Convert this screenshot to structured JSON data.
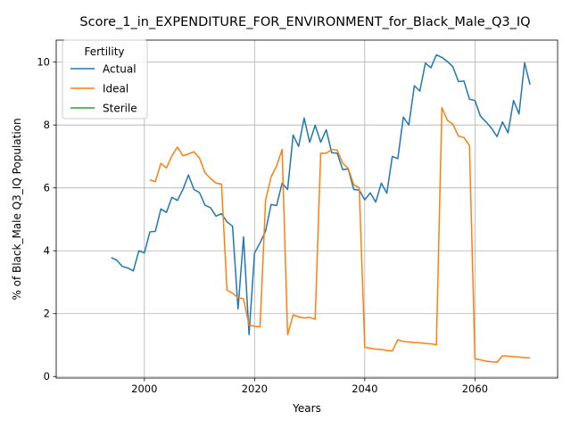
{
  "chart_data": {
    "type": "line",
    "title": "Score_1_in_EXPENDITURE_FOR_ENVIRONMENT_for_Black_Male_Q3_IQ",
    "xlabel": "Years",
    "ylabel": "% of Black_Male Q3_IQ Population",
    "xlim": [
      1984,
      2075
    ],
    "ylim": [
      -0.05,
      10.7
    ],
    "xticks": [
      2000,
      2020,
      2040,
      2060
    ],
    "yticks": [
      0,
      2,
      4,
      6,
      8,
      10
    ],
    "grid": true,
    "legend": {
      "title": "Fertility",
      "placement": "top-left"
    },
    "series": [
      {
        "name": "Actual",
        "color": "#1f77b4",
        "points": [
          [
            1994,
            3.78
          ],
          [
            1995,
            3.7
          ],
          [
            1996,
            3.5
          ],
          [
            1997,
            3.45
          ],
          [
            1998,
            3.36
          ],
          [
            1999,
            4.0
          ],
          [
            2000,
            3.93
          ],
          [
            2001,
            4.6
          ],
          [
            2002,
            4.62
          ],
          [
            2003,
            5.33
          ],
          [
            2004,
            5.22
          ],
          [
            2005,
            5.7
          ],
          [
            2006,
            5.6
          ],
          [
            2007,
            5.95
          ],
          [
            2008,
            6.41
          ],
          [
            2009,
            5.95
          ],
          [
            2010,
            5.85
          ],
          [
            2011,
            5.45
          ],
          [
            2012,
            5.37
          ],
          [
            2013,
            5.1
          ],
          [
            2014,
            5.18
          ],
          [
            2015,
            4.92
          ],
          [
            2016,
            4.78
          ],
          [
            2017,
            2.15
          ],
          [
            2018,
            4.44
          ],
          [
            2019,
            1.33
          ],
          [
            2020,
            3.93
          ],
          [
            2021,
            4.25
          ],
          [
            2022,
            4.63
          ],
          [
            2023,
            5.47
          ],
          [
            2024,
            5.44
          ],
          [
            2025,
            6.15
          ],
          [
            2026,
            5.95
          ],
          [
            2027,
            7.68
          ],
          [
            2028,
            7.32
          ],
          [
            2029,
            8.22
          ],
          [
            2030,
            7.45
          ],
          [
            2031,
            7.99
          ],
          [
            2032,
            7.45
          ],
          [
            2033,
            7.85
          ],
          [
            2034,
            7.12
          ],
          [
            2035,
            7.1
          ],
          [
            2036,
            6.58
          ],
          [
            2037,
            6.6
          ],
          [
            2038,
            5.95
          ],
          [
            2039,
            5.93
          ],
          [
            2040,
            5.62
          ],
          [
            2041,
            5.84
          ],
          [
            2042,
            5.55
          ],
          [
            2043,
            6.15
          ],
          [
            2044,
            5.83
          ],
          [
            2045,
            7.0
          ],
          [
            2046,
            6.93
          ],
          [
            2047,
            8.25
          ],
          [
            2048,
            8.0
          ],
          [
            2049,
            9.25
          ],
          [
            2050,
            9.08
          ],
          [
            2051,
            9.97
          ],
          [
            2052,
            9.82
          ],
          [
            2053,
            10.23
          ],
          [
            2054,
            10.15
          ],
          [
            2055,
            10.02
          ],
          [
            2056,
            9.85
          ],
          [
            2057,
            9.38
          ],
          [
            2058,
            9.4
          ],
          [
            2059,
            8.82
          ],
          [
            2060,
            8.78
          ],
          [
            2061,
            8.28
          ],
          [
            2062,
            8.1
          ],
          [
            2063,
            7.9
          ],
          [
            2064,
            7.63
          ],
          [
            2065,
            8.1
          ],
          [
            2066,
            7.75
          ],
          [
            2067,
            8.78
          ],
          [
            2068,
            8.35
          ],
          [
            2069,
            9.98
          ],
          [
            2070,
            9.28
          ]
        ]
      },
      {
        "name": "Ideal",
        "color": "#ff7f0e",
        "points": [
          [
            2001,
            6.25
          ],
          [
            2002,
            6.2
          ],
          [
            2003,
            6.78
          ],
          [
            2004,
            6.63
          ],
          [
            2005,
            7.02
          ],
          [
            2006,
            7.3
          ],
          [
            2007,
            7.02
          ],
          [
            2008,
            7.08
          ],
          [
            2009,
            7.15
          ],
          [
            2010,
            6.95
          ],
          [
            2011,
            6.48
          ],
          [
            2012,
            6.3
          ],
          [
            2013,
            6.15
          ],
          [
            2014,
            6.12
          ],
          [
            2015,
            2.74
          ],
          [
            2016,
            2.65
          ],
          [
            2017,
            2.51
          ],
          [
            2018,
            2.47
          ],
          [
            2019,
            1.63
          ],
          [
            2020,
            1.6
          ],
          [
            2021,
            1.58
          ],
          [
            2022,
            5.6
          ],
          [
            2023,
            6.35
          ],
          [
            2024,
            6.7
          ],
          [
            2025,
            7.22
          ],
          [
            2026,
            1.33
          ],
          [
            2027,
            1.96
          ],
          [
            2028,
            1.9
          ],
          [
            2029,
            1.86
          ],
          [
            2030,
            1.88
          ],
          [
            2031,
            1.82
          ],
          [
            2032,
            7.1
          ],
          [
            2033,
            7.1
          ],
          [
            2034,
            7.22
          ],
          [
            2035,
            7.2
          ],
          [
            2036,
            6.78
          ],
          [
            2037,
            6.62
          ],
          [
            2038,
            6.1
          ],
          [
            2039,
            6.0
          ],
          [
            2040,
            0.93
          ],
          [
            2041,
            0.9
          ],
          [
            2042,
            0.87
          ],
          [
            2043,
            0.86
          ],
          [
            2044,
            0.83
          ],
          [
            2045,
            0.81
          ],
          [
            2046,
            1.17
          ],
          [
            2047,
            1.11
          ],
          [
            2048,
            1.1
          ],
          [
            2049,
            1.08
          ],
          [
            2050,
            1.07
          ],
          [
            2051,
            1.05
          ],
          [
            2052,
            1.04
          ],
          [
            2053,
            1.01
          ],
          [
            2054,
            8.55
          ],
          [
            2055,
            8.15
          ],
          [
            2056,
            8.02
          ],
          [
            2057,
            7.65
          ],
          [
            2058,
            7.6
          ],
          [
            2059,
            7.35
          ],
          [
            2060,
            0.56
          ],
          [
            2061,
            0.53
          ],
          [
            2062,
            0.49
          ],
          [
            2063,
            0.47
          ],
          [
            2064,
            0.45
          ],
          [
            2065,
            0.66
          ],
          [
            2066,
            0.65
          ],
          [
            2067,
            0.63
          ],
          [
            2068,
            0.62
          ],
          [
            2069,
            0.6
          ],
          [
            2070,
            0.59
          ]
        ]
      },
      {
        "name": "Sterile",
        "color": "#2ca02c",
        "points": []
      }
    ]
  }
}
